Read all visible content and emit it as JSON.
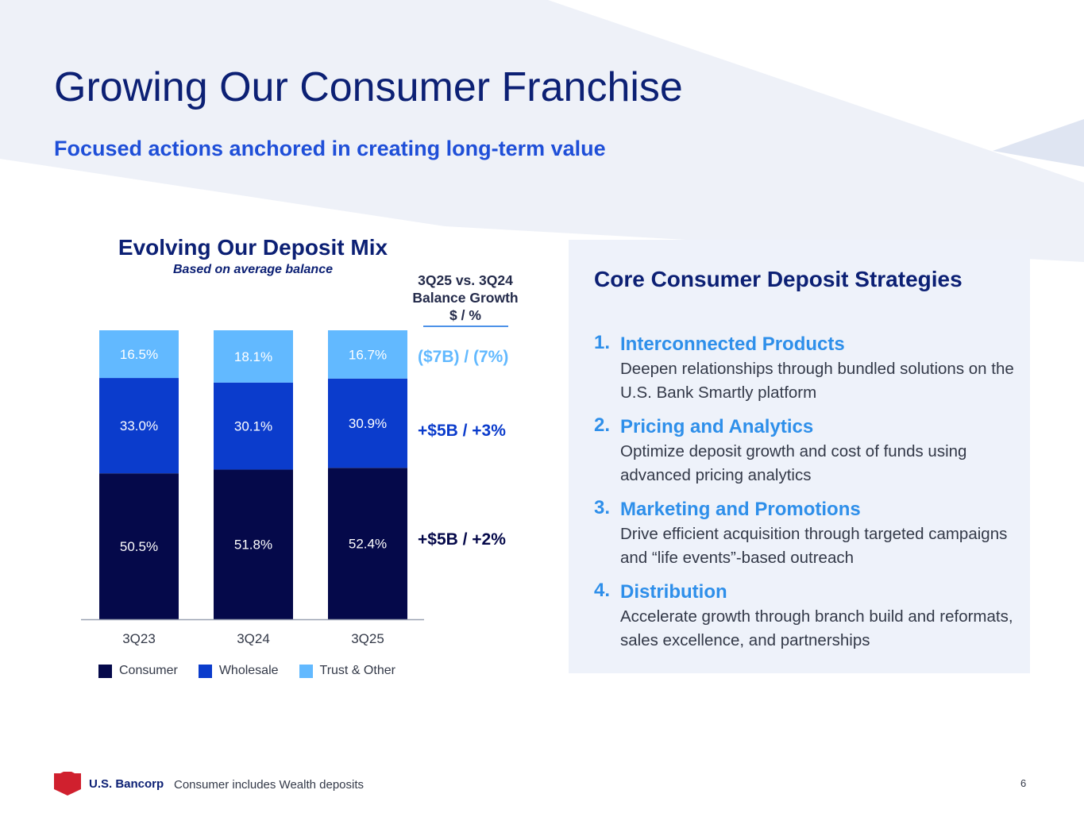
{
  "header": {
    "title": "Growing Our Consumer Franchise",
    "subtitle": "Focused actions anchored in creating long-term value"
  },
  "colors": {
    "navy": "#0c2074",
    "consumer": "#05094a",
    "wholesale": "#0b3ccc",
    "trust_other": "#62b9ff",
    "accent_blue": "#2e8fea",
    "panel_bg": "#eef2fa"
  },
  "chart": {
    "title": "Evolving Our Deposit Mix",
    "subtitle": "Based on average balance"
  },
  "chart_data": {
    "type": "bar",
    "stacked": true,
    "normalized": true,
    "title": "Evolving Our Deposit Mix",
    "subtitle": "Based on average balance",
    "categories": [
      "3Q23",
      "3Q24",
      "3Q25"
    ],
    "series": [
      {
        "name": "Consumer",
        "values": [
          50.5,
          51.8,
          52.4
        ],
        "labels": [
          "50.5%",
          "51.8%",
          "52.4%"
        ],
        "color": "#05094a"
      },
      {
        "name": "Wholesale",
        "values": [
          33.0,
          30.1,
          30.9
        ],
        "labels": [
          "33.0%",
          "30.1%",
          "30.9%"
        ],
        "color": "#0b3ccc"
      },
      {
        "name": "Trust & Other",
        "values": [
          16.5,
          18.1,
          16.7
        ],
        "labels": [
          "16.5%",
          "18.1%",
          "16.7%"
        ],
        "color": "#62b9ff"
      }
    ],
    "ylim": [
      0,
      100
    ],
    "xlabel": "",
    "ylabel": "",
    "grid": false,
    "legend_position": "bottom"
  },
  "growth": {
    "header_line1": "3Q25 vs. 3Q24",
    "header_line2": "Balance Growth",
    "header_line3": "$ / %",
    "trust_other": "($7B) / (7%)",
    "wholesale": "+$5B / +3%",
    "consumer": "+$5B / +2%"
  },
  "legend": {
    "consumer": "Consumer",
    "wholesale": "Wholesale",
    "trust_other": "Trust & Other"
  },
  "panel": {
    "title": "Core Consumer Deposit Strategies",
    "items": [
      {
        "num": "1.",
        "name": "Interconnected Products",
        "desc": "Deepen relationships through bundled solutions on the U.S. Bank Smartly platform"
      },
      {
        "num": "2.",
        "name": "Pricing and Analytics",
        "desc": "Optimize deposit growth and cost of funds using advanced pricing analytics"
      },
      {
        "num": "3.",
        "name": "Marketing and Promotions",
        "desc": "Drive efficient acquisition through targeted campaigns and “life events”-based outreach"
      },
      {
        "num": "4.",
        "name": "Distribution",
        "desc": "Accelerate growth through branch build and reformats, sales excellence, and partnerships"
      }
    ]
  },
  "footer": {
    "logo_text": "U.S. Bancorp",
    "footnote": "Consumer includes Wealth deposits",
    "page_number": "6"
  }
}
